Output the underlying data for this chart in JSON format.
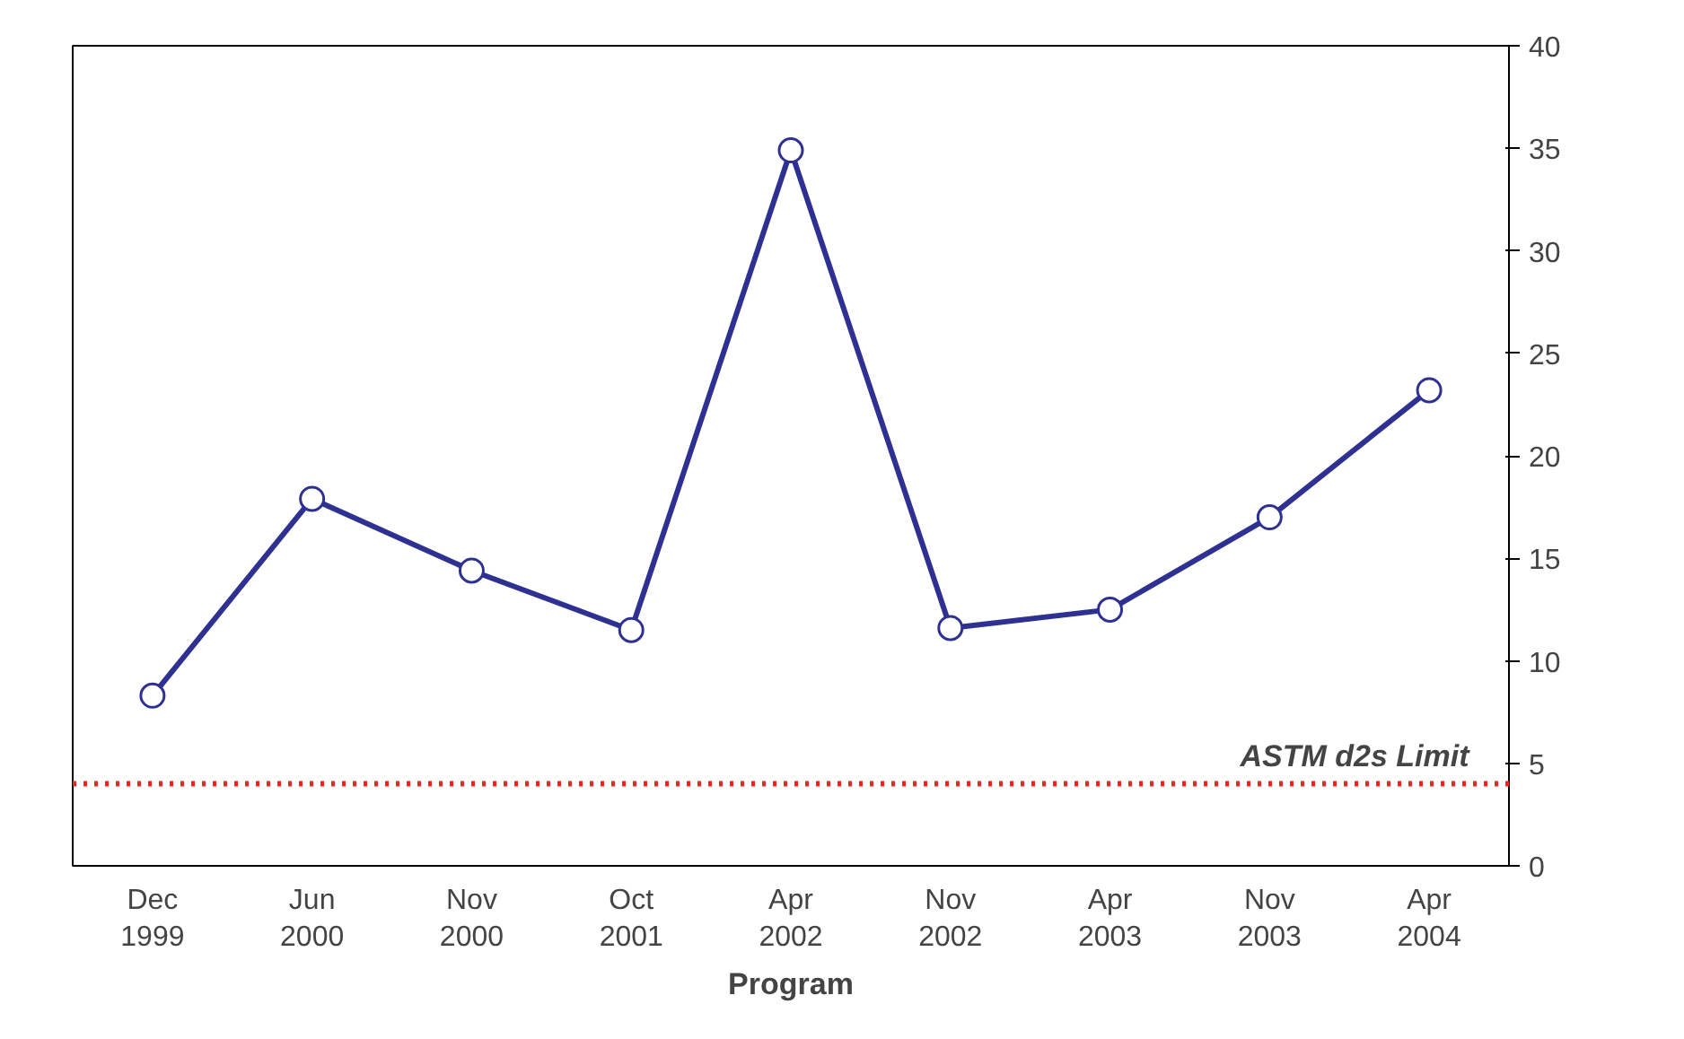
{
  "chart_data": {
    "type": "line",
    "xlabel": "Program",
    "categories": [
      "Dec\n1999",
      "Jun\n2000",
      "Nov\n2000",
      "Oct\n2001",
      "Apr\n2002",
      "Nov\n2002",
      "Apr\n2003",
      "Nov\n2003",
      "Apr\n2004"
    ],
    "series": [
      {
        "color": "#2e3192",
        "values": [
          8.3,
          17.9,
          14.4,
          11.5,
          34.9,
          11.6,
          12.5,
          17.0,
          23.2
        ]
      }
    ],
    "ylim": [
      0,
      40
    ],
    "yticks": [
      0,
      5,
      10,
      15,
      20,
      25,
      30,
      35,
      40
    ],
    "ref_lines": [
      {
        "axis": "y",
        "value": 4,
        "label": "ASTM d2s Limit",
        "color": "#e8281e",
        "line_style": "dotted"
      }
    ],
    "marker": "circle",
    "grid": false
  }
}
